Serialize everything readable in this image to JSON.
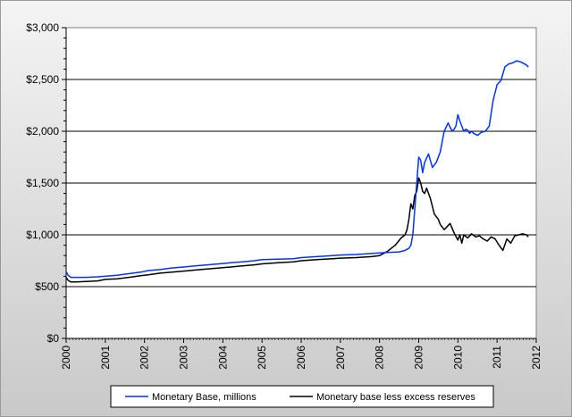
{
  "chart_data": {
    "type": "line",
    "title": "",
    "xlabel": "",
    "ylabel": "",
    "xlim": [
      2000,
      2012
    ],
    "ylim": [
      0,
      3000
    ],
    "x_tick_labels": [
      "2000",
      "2001",
      "2002",
      "2003",
      "2004",
      "2005",
      "2006",
      "2007",
      "2008",
      "2009",
      "2010",
      "2011",
      "2012"
    ],
    "y_tick_labels": [
      "$0",
      "$500",
      "$1,000",
      "$1,500",
      "$2,000",
      "$2,500",
      "$3,000"
    ],
    "y_tick_values": [
      0,
      500,
      1000,
      1500,
      2000,
      2500,
      3000
    ],
    "grid": "horizontal major gridlines",
    "legend_position": "bottom",
    "series": [
      {
        "name": "Monetary Base, millions",
        "color": "#0033ff",
        "x": [
          2000.0,
          2000.05,
          2000.12,
          2000.25,
          2000.5,
          2000.8,
          2001.0,
          2001.3,
          2001.6,
          2001.9,
          2002.1,
          2002.4,
          2002.7,
          2003.0,
          2003.3,
          2003.6,
          2003.9,
          2004.2,
          2004.5,
          2004.8,
          2005.0,
          2005.4,
          2005.8,
          2006.0,
          2006.4,
          2006.8,
          2007.0,
          2007.4,
          2007.8,
          2008.0,
          2008.2,
          2008.5,
          2008.6,
          2008.65,
          2008.7,
          2008.75,
          2008.8,
          2008.85,
          2008.9,
          2008.95,
          2009.0,
          2009.05,
          2009.1,
          2009.15,
          2009.25,
          2009.35,
          2009.45,
          2009.55,
          2009.65,
          2009.75,
          2009.85,
          2009.9,
          2009.95,
          2010.0,
          2010.05,
          2010.15,
          2010.2,
          2010.25,
          2010.3,
          2010.35,
          2010.4,
          2010.5,
          2010.6,
          2010.7,
          2010.8,
          2010.9,
          2011.0,
          2011.1,
          2011.2,
          2011.3,
          2011.4,
          2011.5,
          2011.6,
          2011.7,
          2011.75,
          2011.8
        ],
        "values": [
          645,
          610,
          590,
          590,
          590,
          595,
          600,
          610,
          625,
          640,
          655,
          665,
          680,
          690,
          700,
          710,
          720,
          730,
          740,
          750,
          760,
          765,
          770,
          780,
          790,
          800,
          805,
          810,
          820,
          825,
          830,
          835,
          845,
          850,
          860,
          870,
          900,
          1000,
          1250,
          1500,
          1750,
          1720,
          1600,
          1700,
          1780,
          1650,
          1700,
          1800,
          2000,
          2080,
          2000,
          2020,
          2050,
          2160,
          2100,
          2000,
          2020,
          2010,
          1980,
          2000,
          1980,
          1960,
          1990,
          2000,
          2050,
          2300,
          2450,
          2490,
          2620,
          2650,
          2660,
          2680,
          2670,
          2650,
          2640,
          2620
        ]
      },
      {
        "name": "Monetary base less excess reserves",
        "color": "#000000",
        "x": [
          2000.0,
          2000.05,
          2000.12,
          2000.25,
          2000.5,
          2000.8,
          2001.0,
          2001.3,
          2001.6,
          2001.9,
          2002.1,
          2002.4,
          2002.7,
          2003.0,
          2003.3,
          2003.6,
          2003.9,
          2004.2,
          2004.5,
          2004.8,
          2005.0,
          2005.4,
          2005.8,
          2006.0,
          2006.4,
          2006.8,
          2007.0,
          2007.4,
          2007.8,
          2008.0,
          2008.2,
          2008.4,
          2008.55,
          2008.65,
          2008.7,
          2008.75,
          2008.8,
          2008.85,
          2008.9,
          2008.95,
          2009.0,
          2009.05,
          2009.1,
          2009.15,
          2009.2,
          2009.3,
          2009.4,
          2009.5,
          2009.55,
          2009.65,
          2009.7,
          2009.8,
          2009.9,
          2010.0,
          2010.05,
          2010.1,
          2010.15,
          2010.25,
          2010.35,
          2010.45,
          2010.55,
          2010.65,
          2010.75,
          2010.85,
          2010.95,
          2011.05,
          2011.15,
          2011.25,
          2011.35,
          2011.45,
          2011.55,
          2011.65,
          2011.75,
          2011.8
        ],
        "values": [
          590,
          560,
          545,
          545,
          550,
          555,
          570,
          575,
          590,
          605,
          615,
          630,
          640,
          650,
          660,
          670,
          680,
          690,
          700,
          710,
          720,
          730,
          740,
          750,
          760,
          770,
          775,
          780,
          790,
          800,
          840,
          900,
          970,
          1000,
          1050,
          1150,
          1300,
          1250,
          1380,
          1420,
          1550,
          1500,
          1420,
          1400,
          1450,
          1350,
          1200,
          1150,
          1100,
          1050,
          1070,
          1110,
          1020,
          950,
          1000,
          920,
          1000,
          970,
          1010,
          980,
          990,
          960,
          940,
          980,
          960,
          900,
          850,
          960,
          920,
          990,
          1000,
          1010,
          1000,
          980
        ]
      }
    ]
  }
}
